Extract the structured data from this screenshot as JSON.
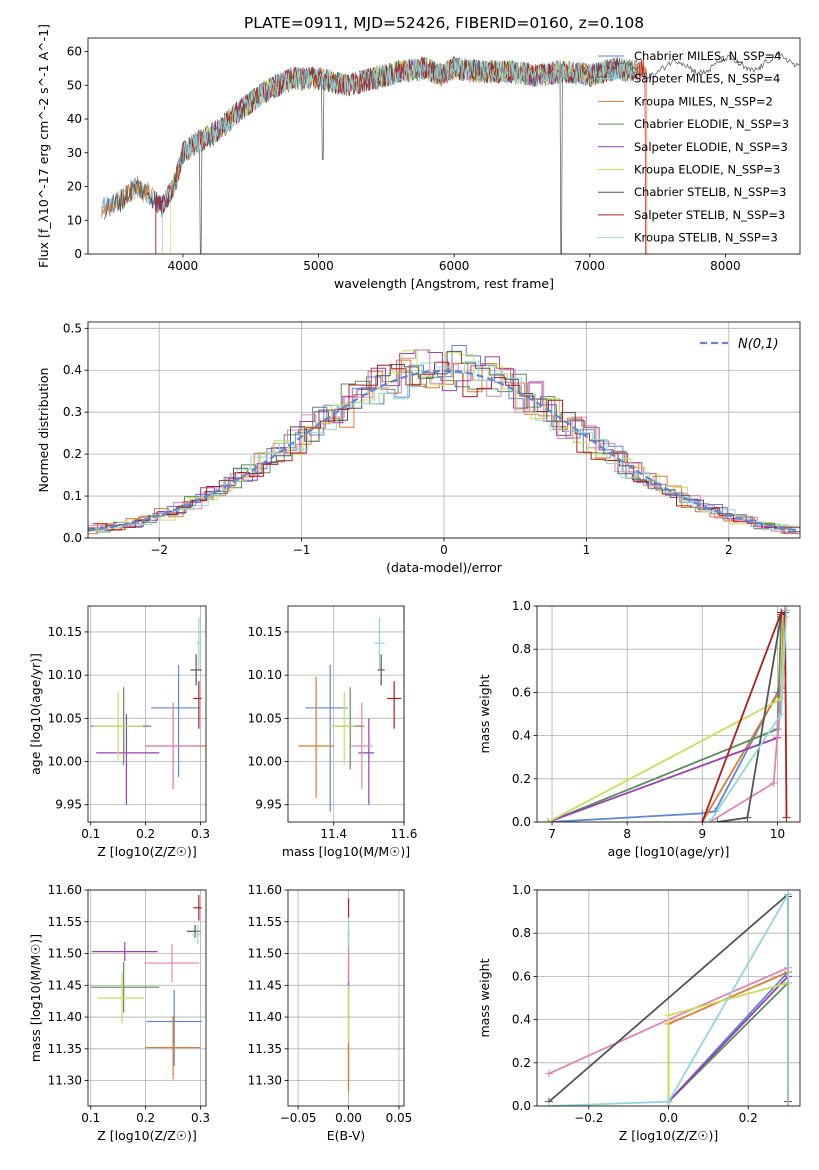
{
  "figure": {
    "title": "PLATE=0911, MJD=52426, FIBERID=0160, z=0.108"
  },
  "colors": {
    "c1": "#5f87d6",
    "c2": "#e07a2a",
    "c3": "#5a8f5a",
    "c4": "#9a3fb5",
    "c5": "#e383b6",
    "c6": "#c8de5a",
    "c7": "#555555",
    "c8": "#b21d1d",
    "c9": "#8fd8dc"
  },
  "chart_data": [
    {
      "id": "spectrum",
      "type": "line",
      "xlabel": "wavelength [Angstrom, rest frame]",
      "ylabel": "Flux [f_λ10^-17 erg cm^-2 s^-1 A^-1]",
      "xlim": [
        3300,
        8550
      ],
      "ylim": [
        0,
        64
      ],
      "xticks": [
        4000,
        5000,
        6000,
        7000,
        8000
      ],
      "yticks": [
        0,
        10,
        20,
        30,
        40,
        50,
        60
      ],
      "legend_position": "top-right",
      "legend": [
        {
          "label": "Chabrier MILES, N_SSP=4",
          "color": "c1"
        },
        {
          "label": "Salpeter MILES, N_SSP=4",
          "color": "c9"
        },
        {
          "label": "Kroupa MILES, N_SSP=2",
          "color": "c2"
        },
        {
          "label": "Chabrier ELODIE, N_SSP=3",
          "color": "c3"
        },
        {
          "label": "Salpeter ELODIE, N_SSP=3",
          "color": "c4"
        },
        {
          "label": "Kroupa ELODIE, N_SSP=3",
          "color": "c6"
        },
        {
          "label": "Chabrier STELIB, N_SSP=3",
          "color": "c7"
        },
        {
          "label": "Salpeter STELIB, N_SSP=3",
          "color": "c8"
        },
        {
          "label": "Kroupa STELIB, N_SSP=3",
          "color": "c9"
        }
      ],
      "series_envelope": {
        "x": [
          3400,
          3550,
          3650,
          3750,
          3850,
          3950,
          4000,
          4100,
          4200,
          4300,
          4400,
          4600,
          4800,
          5000,
          5200,
          5400,
          5600,
          5800,
          5900,
          6000,
          6200,
          6400,
          6600,
          6800,
          7000,
          7200,
          7300,
          7500,
          8000,
          8550
        ],
        "y": [
          13,
          16,
          20,
          18,
          14,
          22,
          30,
          33,
          35,
          38,
          42,
          48,
          52,
          52,
          50,
          52,
          54,
          55,
          53,
          55,
          54,
          54,
          53,
          54,
          53,
          55,
          54,
          55,
          56,
          57
        ]
      },
      "series_start_x": [
        3400,
        3400,
        3400,
        3800,
        3800,
        3910,
        3420,
        3800,
        3850
      ]
    },
    {
      "id": "residual-histogram",
      "type": "line",
      "xlabel": "(data-model)/error",
      "ylabel": "Normed distribution",
      "xlim": [
        -2.5,
        2.5
      ],
      "ylim": [
        0,
        0.515
      ],
      "xticks": [
        -2,
        -1,
        0,
        1,
        2
      ],
      "yticks": [
        0.0,
        0.1,
        0.2,
        0.3,
        0.4,
        0.5
      ],
      "legend_position": "top-right",
      "legend": [
        {
          "label": "N(0,1)",
          "color": "c1",
          "style": "dashed"
        }
      ],
      "bin_width": 0.1,
      "bin_start": -2.5,
      "histogram_colors": [
        "c1",
        "c2",
        "c3",
        "c4",
        "c5",
        "c6",
        "c7",
        "c8",
        "c9"
      ]
    },
    {
      "id": "age-vs-Z",
      "type": "scatter",
      "xlabel": "Z [log10(Z/Z☉)]",
      "ylabel": "age [log10(age/yr)]",
      "xlim": [
        0.095,
        0.31
      ],
      "ylim": [
        9.93,
        10.18
      ],
      "xticks": [
        0.1,
        0.2,
        0.3
      ],
      "yticks": [
        9.95,
        10.0,
        10.05,
        10.1,
        10.15
      ],
      "points": [
        {
          "color": "c1",
          "x": 0.26,
          "xerr": [
            0.05,
            0.04
          ],
          "y": 10.062,
          "yerr": [
            0.08,
            0.05
          ]
        },
        {
          "color": "c2",
          "x": 0.25,
          "xerr": [
            0.05,
            0.06
          ],
          "y": 10.018,
          "yerr": [
            0.05,
            0.05
          ]
        },
        {
          "color": "c3",
          "x": 0.16,
          "xerr": [
            0.06,
            0.05
          ],
          "y": 10.041,
          "yerr": [
            0.045,
            0.045
          ]
        },
        {
          "color": "c4",
          "x": 0.165,
          "xerr": [
            0.055,
            0.06
          ],
          "y": 10.01,
          "yerr": [
            0.06,
            0.045
          ]
        },
        {
          "color": "c5",
          "x": 0.25,
          "xerr": [
            0.05,
            0.05
          ],
          "y": 10.018,
          "yerr": [
            0.05,
            0.05
          ]
        },
        {
          "color": "c6",
          "x": 0.15,
          "xerr": [
            0.045,
            0.045
          ],
          "y": 10.041,
          "yerr": [
            0.04,
            0.04
          ]
        },
        {
          "color": "c7",
          "x": 0.292,
          "xerr": [
            0.01,
            0.01
          ],
          "y": 10.106,
          "yerr": [
            0.018,
            0.018
          ]
        },
        {
          "color": "c8",
          "x": 0.297,
          "xerr": [
            0.01,
            0.005
          ],
          "y": 10.073,
          "yerr": [
            0.035,
            0.02
          ]
        },
        {
          "color": "c9",
          "x": 0.297,
          "xerr": [
            0.005,
            0.005
          ],
          "y": 10.137,
          "yerr": [
            0.03,
            0.03
          ]
        }
      ]
    },
    {
      "id": "age-vs-mass",
      "type": "scatter",
      "xlabel": "mass [log10(M/M☉)]",
      "ylabel": "",
      "xlim": [
        11.27,
        11.6
      ],
      "ylim": [
        9.93,
        10.18
      ],
      "xticks": [
        11.4,
        11.6
      ],
      "yticks": [
        9.95,
        10.0,
        10.05,
        10.1,
        10.15
      ],
      "points": [
        {
          "color": "c1",
          "x": 11.39,
          "xerr": [
            0.07,
            0.05
          ],
          "y": 10.062,
          "yerr": [
            0.12,
            0.05
          ]
        },
        {
          "color": "c2",
          "x": 11.35,
          "xerr": [
            0.05,
            0.05
          ],
          "y": 10.018,
          "yerr": [
            0.06,
            0.08
          ]
        },
        {
          "color": "c3",
          "x": 11.447,
          "xerr": [
            0.04,
            0.04
          ],
          "y": 10.041,
          "yerr": [
            0.05,
            0.045
          ]
        },
        {
          "color": "c4",
          "x": 11.5,
          "xerr": [
            0.03,
            0.015
          ],
          "y": 10.01,
          "yerr": [
            0.06,
            0.04
          ]
        },
        {
          "color": "c5",
          "x": 11.48,
          "xerr": [
            0.03,
            0.03
          ],
          "y": 10.018,
          "yerr": [
            0.05,
            0.05
          ]
        },
        {
          "color": "c6",
          "x": 11.43,
          "xerr": [
            0.04,
            0.03
          ],
          "y": 10.041,
          "yerr": [
            0.045,
            0.04
          ]
        },
        {
          "color": "c7",
          "x": 11.535,
          "xerr": [
            0.01,
            0.01
          ],
          "y": 10.106,
          "yerr": [
            0.018,
            0.018
          ]
        },
        {
          "color": "c8",
          "x": 11.572,
          "xerr": [
            0.02,
            0.02
          ],
          "y": 10.073,
          "yerr": [
            0.035,
            0.02
          ]
        },
        {
          "color": "c9",
          "x": 11.53,
          "xerr": [
            0.015,
            0.015
          ],
          "y": 10.137,
          "yerr": [
            0.03,
            0.03
          ]
        }
      ]
    },
    {
      "id": "mass-weight-vs-age",
      "type": "line",
      "xlabel": "age [log10(age/yr)]",
      "ylabel": "mass weight",
      "xlim": [
        6.8,
        10.3
      ],
      "ylim": [
        0,
        1.0
      ],
      "xticks": [
        7,
        8,
        9,
        10
      ],
      "yticks": [
        0.0,
        0.2,
        0.4,
        0.6,
        0.8,
        1.0
      ],
      "series": [
        {
          "color": "c1",
          "x": [
            6.95,
            9.0,
            9.17,
            10.0,
            10.05,
            10.1
          ],
          "y": [
            0.0,
            0.04,
            0.05,
            0.6,
            0.62,
            0.98
          ]
        },
        {
          "color": "c2",
          "x": [
            9.0,
            10.05,
            10.08
          ],
          "y": [
            0.0,
            0.62,
            0.95
          ]
        },
        {
          "color": "c3",
          "x": [
            6.95,
            10.0,
            10.05
          ],
          "y": [
            0.0,
            0.43,
            0.95
          ]
        },
        {
          "color": "c4",
          "x": [
            6.95,
            10.0,
            10.05
          ],
          "y": [
            0.0,
            0.39,
            0.6
          ]
        },
        {
          "color": "c5",
          "x": [
            9.1,
            9.95,
            10.05,
            10.12
          ],
          "y": [
            0.0,
            0.18,
            0.63,
            0.98
          ]
        },
        {
          "color": "c6",
          "x": [
            6.95,
            10.05,
            10.1
          ],
          "y": [
            0.0,
            0.57,
            0.95
          ]
        },
        {
          "color": "c7",
          "x": [
            9.2,
            9.6,
            10.05,
            10.1
          ],
          "y": [
            0.0,
            0.02,
            0.96,
            0.97
          ]
        },
        {
          "color": "c8",
          "x": [
            9.0,
            10.05,
            10.1,
            10.12
          ],
          "y": [
            0.0,
            0.97,
            0.97,
            0.02
          ]
        },
        {
          "color": "c9",
          "x": [
            9.1,
            10.05,
            10.12
          ],
          "y": [
            0.0,
            0.5,
            0.98
          ]
        }
      ]
    },
    {
      "id": "mass-vs-Z",
      "type": "scatter",
      "xlabel": "Z [log10(Z/Z☉)]",
      "ylabel": "mass [log10(M/M☉)]",
      "xlim": [
        0.095,
        0.31
      ],
      "ylim": [
        11.26,
        11.6
      ],
      "xticks": [
        0.1,
        0.2,
        0.3
      ],
      "yticks": [
        11.3,
        11.35,
        11.4,
        11.45,
        11.5,
        11.55,
        11.6
      ],
      "points": [
        {
          "color": "c1",
          "x": 0.252,
          "xerr": [
            0.05,
            0.05
          ],
          "y": 11.393,
          "yerr": [
            0.07,
            0.05
          ]
        },
        {
          "color": "c2",
          "x": 0.25,
          "xerr": [
            0.05,
            0.05
          ],
          "y": 11.352,
          "yerr": [
            0.05,
            0.05
          ]
        },
        {
          "color": "c3",
          "x": 0.16,
          "xerr": [
            0.06,
            0.065
          ],
          "y": 11.447,
          "yerr": [
            0.04,
            0.04
          ]
        },
        {
          "color": "c4",
          "x": 0.162,
          "xerr": [
            0.06,
            0.06
          ],
          "y": 11.503,
          "yerr": [
            0.015,
            0.015
          ]
        },
        {
          "color": "c5",
          "x": 0.248,
          "xerr": [
            0.05,
            0.05
          ],
          "y": 11.485,
          "yerr": [
            0.03,
            0.03
          ]
        },
        {
          "color": "c6",
          "x": 0.157,
          "xerr": [
            0.045,
            0.04
          ],
          "y": 11.43,
          "yerr": [
            0.04,
            0.04
          ]
        },
        {
          "color": "c7",
          "x": 0.29,
          "xerr": [
            0.015,
            0.01
          ],
          "y": 11.535,
          "yerr": [
            0.01,
            0.01
          ]
        },
        {
          "color": "c8",
          "x": 0.297,
          "xerr": [
            0.01,
            0.005
          ],
          "y": 11.572,
          "yerr": [
            0.02,
            0.02
          ]
        },
        {
          "color": "c9",
          "x": 0.295,
          "xerr": [
            0.01,
            0.005
          ],
          "y": 11.53,
          "yerr": [
            0.015,
            0.015
          ]
        }
      ]
    },
    {
      "id": "mass-vs-ebv",
      "type": "scatter",
      "xlabel": "E(B-V)",
      "ylabel": "",
      "xlim": [
        -0.06,
        0.055
      ],
      "ylim": [
        11.26,
        11.6
      ],
      "xticks": [
        -0.05,
        0.0,
        0.05
      ],
      "yticks": [
        11.3,
        11.35,
        11.4,
        11.45,
        11.5,
        11.55,
        11.6
      ],
      "points": [
        {
          "color": "c1",
          "x": 0.0,
          "xerr": [
            0,
            0
          ],
          "y": 11.393,
          "yerr": [
            0.1,
            0.05
          ]
        },
        {
          "color": "c2",
          "x": 0.0,
          "xerr": [
            0,
            0
          ],
          "y": 11.352,
          "yerr": [
            0.07,
            0.05
          ]
        },
        {
          "color": "c3",
          "x": 0.0,
          "xerr": [
            0,
            0
          ],
          "y": 11.447,
          "yerr": [
            0.05,
            0.04
          ]
        },
        {
          "color": "c4",
          "x": 0.0,
          "xerr": [
            0,
            0
          ],
          "y": 11.503,
          "yerr": [
            0.06,
            0.03
          ]
        },
        {
          "color": "c5",
          "x": 0.0,
          "xerr": [
            0,
            0
          ],
          "y": 11.485,
          "yerr": [
            0.03,
            0.03
          ]
        },
        {
          "color": "c6",
          "x": 0.0,
          "xerr": [
            0,
            0
          ],
          "y": 11.43,
          "yerr": [
            0.07,
            0.02
          ]
        },
        {
          "color": "c7",
          "x": 0.0,
          "xerr": [
            0,
            0
          ],
          "y": 11.535,
          "yerr": [
            0.01,
            0.01
          ]
        },
        {
          "color": "c8",
          "x": 0.0,
          "xerr": [
            0,
            0
          ],
          "y": 11.572,
          "yerr": [
            0.015,
            0.015
          ]
        },
        {
          "color": "c9",
          "x": 0.0,
          "xerr": [
            0,
            0
          ],
          "y": 11.53,
          "yerr": [
            0.02,
            0.02
          ]
        }
      ]
    },
    {
      "id": "mass-weight-vs-Z",
      "type": "line",
      "xlabel": "Z [log10(Z/Z☉)]",
      "ylabel": "mass weight",
      "xlim": [
        -0.33,
        0.33
      ],
      "ylim": [
        0,
        1.0
      ],
      "xticks": [
        -0.2,
        0.0,
        0.2
      ],
      "yticks": [
        0.0,
        0.2,
        0.4,
        0.6,
        0.8,
        1.0
      ],
      "series": [
        {
          "color": "c1",
          "x": [
            0.0,
            0.0,
            0.3
          ],
          "y": [
            0.0,
            0.02,
            0.62
          ]
        },
        {
          "color": "c2",
          "x": [
            0.0,
            0.0,
            0.3,
            0.3
          ],
          "y": [
            0.0,
            0.38,
            0.62,
            0.0
          ]
        },
        {
          "color": "c3",
          "x": [
            0.0,
            0.0,
            0.3,
            0.3
          ],
          "y": [
            0.0,
            0.02,
            0.57,
            0.0
          ]
        },
        {
          "color": "c4",
          "x": [
            0.0,
            0.0,
            0.3,
            0.3
          ],
          "y": [
            0.0,
            0.02,
            0.6,
            0.0
          ]
        },
        {
          "color": "c5",
          "x": [
            -0.3,
            0.0,
            0.3,
            0.3
          ],
          "y": [
            0.15,
            0.4,
            0.64,
            0.0
          ]
        },
        {
          "color": "c6",
          "x": [
            0.0,
            0.0,
            0.3,
            0.3
          ],
          "y": [
            0.0,
            0.42,
            0.57,
            0.0
          ]
        },
        {
          "color": "c7",
          "x": [
            -0.3,
            0.3,
            0.3
          ],
          "y": [
            0.02,
            0.98,
            0.0
          ]
        },
        {
          "color": "c8",
          "x": [
            0.3,
            0.3
          ],
          "y": [
            0.97,
            0.02
          ]
        },
        {
          "color": "c9",
          "x": [
            -0.3,
            0.0,
            0.3,
            0.3
          ],
          "y": [
            0.0,
            0.02,
            0.98,
            0.0
          ]
        }
      ]
    }
  ]
}
